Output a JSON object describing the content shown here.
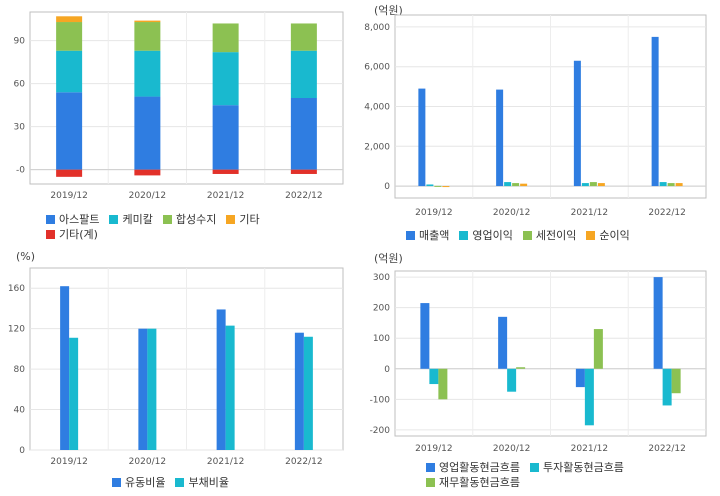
{
  "charts": {
    "composition": {
      "unit": "",
      "legend_rows": [
        [
          {
            "name": "아스팔트",
            "color": "#2f7de1"
          },
          {
            "name": "케미칼",
            "color": "#19b9cf"
          },
          {
            "name": "합성수지",
            "color": "#8cc152"
          },
          {
            "name": "기타",
            "color": "#f6a623"
          }
        ],
        [
          {
            "name": "기타(계)",
            "color": "#e2312a"
          }
        ]
      ]
    },
    "income": {
      "unit": "(억원)",
      "legend_rows": [
        [
          {
            "name": "매출액",
            "color": "#2f7de1"
          },
          {
            "name": "영업이익",
            "color": "#19b9cf"
          },
          {
            "name": "세전이익",
            "color": "#8cc152"
          },
          {
            "name": "순이익",
            "color": "#f6a623"
          }
        ]
      ]
    },
    "ratio": {
      "unit": "(%)",
      "legend_rows": [
        [
          {
            "name": "유동비율",
            "color": "#2f7de1"
          },
          {
            "name": "부채비율",
            "color": "#19b9cf"
          }
        ]
      ]
    },
    "cashflow": {
      "unit": "(억원)",
      "legend_rows": [
        [
          {
            "name": "영업활동현금흐름",
            "color": "#2f7de1"
          },
          {
            "name": "투자활동현금흐름",
            "color": "#19b9cf"
          }
        ],
        [
          {
            "name": "재무활동현금흐름",
            "color": "#8cc152"
          }
        ]
      ]
    }
  },
  "chart_data": [
    {
      "type": "bar",
      "stacked": true,
      "categories": [
        "2019/12",
        "2020/12",
        "2021/12",
        "2022/12"
      ],
      "series": [
        {
          "name": "아스팔트",
          "color": "#2f7de1",
          "values": [
            54,
            51,
            45,
            50
          ]
        },
        {
          "name": "케미칼",
          "color": "#19b9cf",
          "values": [
            29,
            32,
            37,
            33
          ]
        },
        {
          "name": "합성수지",
          "color": "#8cc152",
          "values": [
            20,
            20,
            20,
            19
          ]
        },
        {
          "name": "기타",
          "color": "#f6a623",
          "values": [
            4,
            1,
            0,
            0
          ]
        },
        {
          "name": "기타(계)",
          "color": "#e2312a",
          "values": [
            -5,
            -4,
            -3,
            -3
          ]
        }
      ],
      "yticks": [
        0,
        30,
        60,
        90
      ],
      "ytick_labels": [
        "-0",
        "30",
        "60",
        "90"
      ],
      "ylim": [
        -10,
        110
      ],
      "grid": true,
      "legend": "bottom"
    },
    {
      "type": "bar",
      "categories": [
        "2019/12",
        "2020/12",
        "2021/12",
        "2022/12"
      ],
      "series": [
        {
          "name": "매출액",
          "color": "#2f7de1",
          "values": [
            4900,
            4850,
            6300,
            7500
          ]
        },
        {
          "name": "영업이익",
          "color": "#19b9cf",
          "values": [
            80,
            200,
            150,
            200
          ]
        },
        {
          "name": "세전이익",
          "color": "#8cc152",
          "values": [
            10,
            150,
            200,
            150
          ]
        },
        {
          "name": "순이익",
          "color": "#f6a623",
          "values": [
            -30,
            120,
            150,
            150
          ]
        }
      ],
      "yticks": [
        0,
        2000,
        4000,
        6000,
        8000
      ],
      "ytick_labels": [
        "0",
        "2,000",
        "4,000",
        "6,000",
        "8,000"
      ],
      "ylim": [
        -600,
        8600
      ],
      "grid": true,
      "legend": "bottom"
    },
    {
      "type": "bar",
      "categories": [
        "2019/12",
        "2020/12",
        "2021/12",
        "2022/12"
      ],
      "series": [
        {
          "name": "유동비율",
          "color": "#2f7de1",
          "values": [
            162,
            120,
            139,
            116
          ]
        },
        {
          "name": "부채비율",
          "color": "#19b9cf",
          "values": [
            111,
            120,
            123,
            112
          ]
        }
      ],
      "yticks": [
        0,
        40,
        80,
        120,
        160
      ],
      "ytick_labels": [
        "0",
        "40",
        "80",
        "120",
        "160"
      ],
      "ylim": [
        0,
        180
      ],
      "grid": true,
      "legend": "bottom"
    },
    {
      "type": "bar",
      "categories": [
        "2019/12",
        "2020/12",
        "2021/12",
        "2022/12"
      ],
      "series": [
        {
          "name": "영업활동현금흐름",
          "color": "#2f7de1",
          "values": [
            215,
            170,
            -60,
            300
          ]
        },
        {
          "name": "투자활동현금흐름",
          "color": "#19b9cf",
          "values": [
            -50,
            -75,
            -185,
            -120
          ]
        },
        {
          "name": "재무활동현금흐름",
          "color": "#8cc152",
          "values": [
            -100,
            5,
            130,
            -80
          ]
        }
      ],
      "yticks": [
        -200,
        -100,
        0,
        100,
        200,
        300
      ],
      "ytick_labels": [
        "-200",
        "-100",
        "0",
        "100",
        "200",
        "300"
      ],
      "ylim": [
        -220,
        320
      ],
      "grid": true,
      "legend": "bottom"
    }
  ]
}
